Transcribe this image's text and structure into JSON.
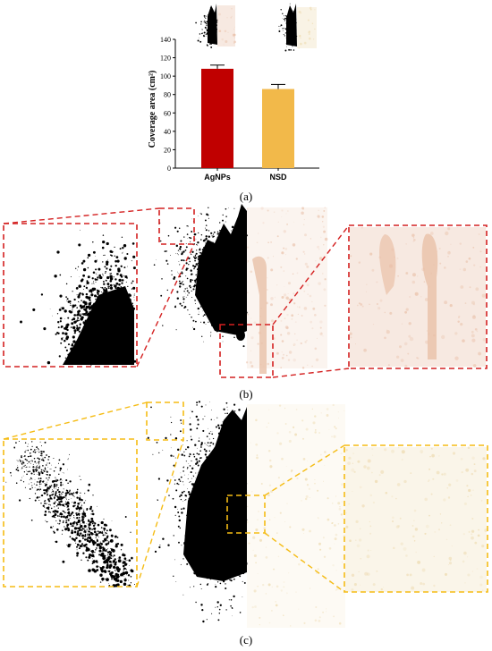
{
  "panel_labels": {
    "a": "(a)",
    "b": "(b)",
    "c": "(c)"
  },
  "colors": {
    "agnps_bar": "#c00000",
    "nsd_bar": "#f2b94a",
    "panel_b_box": "#d42020",
    "panel_c_box": "#f5bc14",
    "agnps_stain": "#e9c0a8",
    "nsd_stain": "#ecd7a8",
    "spray_black": "#000000"
  },
  "chart_data": {
    "type": "bar",
    "categories": [
      "AgNPs",
      "NSD"
    ],
    "values": [
      108,
      86
    ],
    "errors": [
      4,
      5
    ],
    "ylabel": "Coverage area (cm²)",
    "ylim": [
      0,
      140
    ],
    "yticks": [
      0,
      20,
      40,
      60,
      80,
      100,
      120,
      140
    ],
    "grid": false,
    "legend": "none"
  }
}
